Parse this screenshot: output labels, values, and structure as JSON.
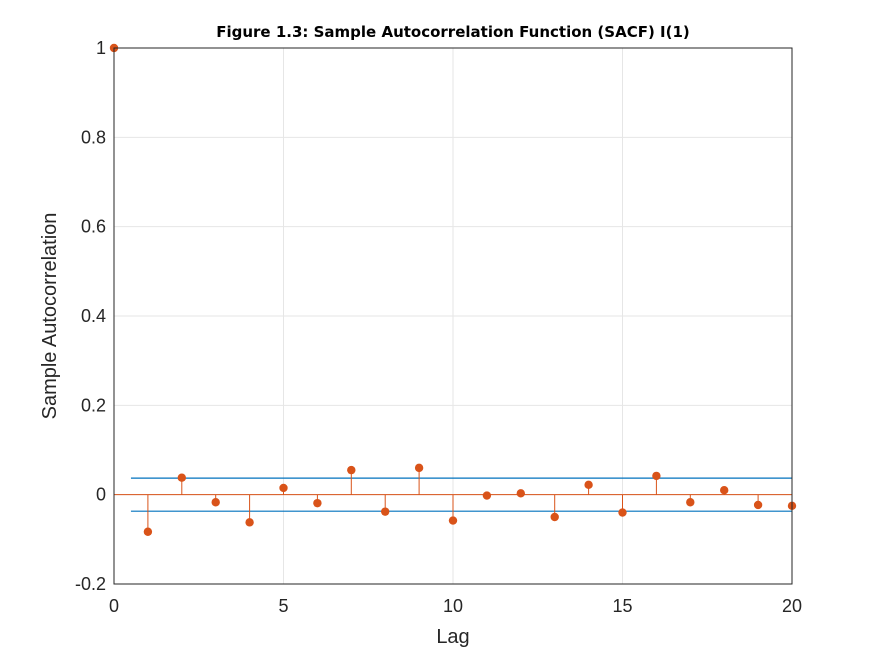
{
  "chart_data": {
    "type": "stem",
    "title": "Figure 1.3: Sample Autocorrelation Function (SACF) I(1)",
    "xlabel": "Lag",
    "ylabel": "Sample Autocorrelation",
    "xlim": [
      0,
      20
    ],
    "ylim": [
      -0.2,
      1
    ],
    "xticks": [
      0,
      5,
      10,
      15,
      20
    ],
    "xtick_labels": [
      "0",
      "5",
      "10",
      "15",
      "20"
    ],
    "yticks": [
      -0.2,
      0,
      0.2,
      0.4,
      0.6,
      0.8,
      1
    ],
    "ytick_labels": [
      "-0.2",
      "0",
      "0.2",
      "0.4",
      "0.6",
      "0.8",
      "1"
    ],
    "grid": true,
    "series": [
      {
        "x": [
          0,
          1,
          2,
          3,
          4,
          5,
          6,
          7,
          8,
          9,
          10,
          11,
          12,
          13,
          14,
          15,
          16,
          17,
          18,
          19,
          20
        ],
        "values": [
          1,
          -0.083,
          0.038,
          -0.017,
          -0.062,
          0.015,
          -0.019,
          0.055,
          -0.038,
          0.06,
          -0.058,
          -0.002,
          0.003,
          -0.05,
          0.022,
          -0.04,
          0.042,
          -0.017,
          0.01,
          -0.023,
          -0.025
        ],
        "color": "#d95319"
      }
    ],
    "confidence_bounds": {
      "upper": 0.037,
      "lower": -0.037,
      "x_range": [
        0.5,
        20
      ],
      "color": "#0072bd"
    }
  }
}
